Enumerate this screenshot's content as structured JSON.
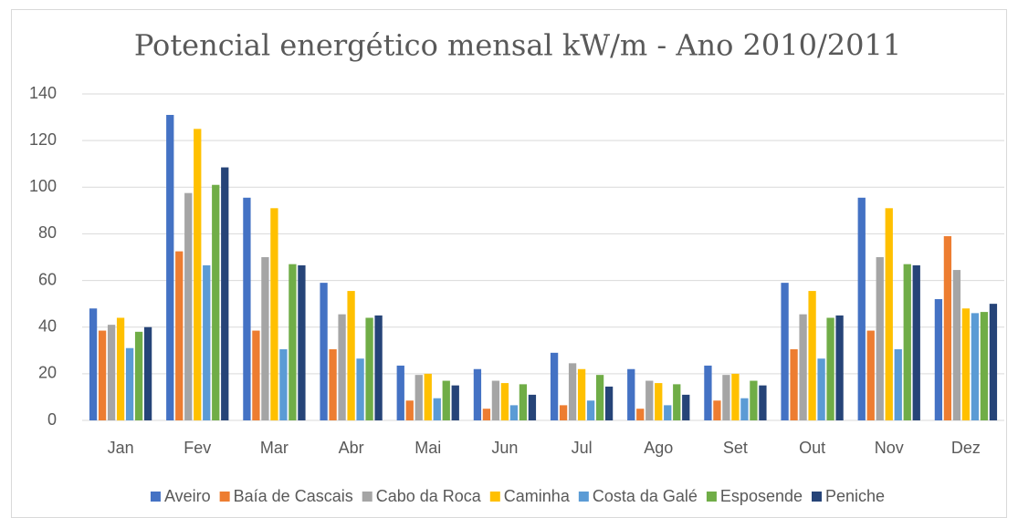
{
  "chart_data": {
    "type": "bar",
    "title": "Potencial energético mensal kW/m - Ano 2010/2011",
    "categories": [
      "Jan",
      "Fev",
      "Mar",
      "Abr",
      "Mai",
      "Jun",
      "Jul",
      "Ago",
      "Set",
      "Out",
      "Nov",
      "Dez"
    ],
    "series": [
      {
        "name": "Aveiro",
        "color": "#4472c4",
        "values": [
          48,
          131,
          95.5,
          59,
          23.5,
          22,
          29,
          22,
          23.5,
          59,
          95.5,
          52
        ]
      },
      {
        "name": "Baía de Cascais",
        "color": "#ed7d31",
        "values": [
          38.5,
          72.5,
          38.5,
          30.5,
          8.5,
          5,
          6.5,
          5,
          8.5,
          30.5,
          38.5,
          79
        ]
      },
      {
        "name": "Cabo da Roca",
        "color": "#a5a5a5",
        "values": [
          41,
          97.5,
          70,
          45.5,
          19.5,
          17,
          24.5,
          17,
          19.5,
          45.5,
          70,
          64.5
        ]
      },
      {
        "name": "Caminha",
        "color": "#ffc000",
        "values": [
          44,
          125,
          91,
          55.5,
          20,
          16,
          22,
          16,
          20,
          55.5,
          91,
          48
        ]
      },
      {
        "name": "Costa da Galé",
        "color": "#5b9bd5",
        "values": [
          31,
          66.5,
          30.5,
          26.5,
          9.5,
          6.5,
          8.5,
          6.5,
          9.5,
          26.5,
          30.5,
          46
        ]
      },
      {
        "name": "Esposende",
        "color": "#70ad47",
        "values": [
          38,
          101,
          67,
          44,
          17,
          15.5,
          19.5,
          15.5,
          17,
          44,
          67,
          46.5
        ]
      },
      {
        "name": "Peniche",
        "color": "#264478",
        "values": [
          40,
          108.5,
          66.5,
          45,
          15,
          11,
          14.5,
          11,
          15,
          45,
          66.5,
          50
        ]
      }
    ],
    "ylim": [
      0,
      140
    ],
    "yticks": [
      0,
      20,
      40,
      60,
      80,
      100,
      120,
      140
    ],
    "grid": true,
    "legend": "bottom"
  }
}
